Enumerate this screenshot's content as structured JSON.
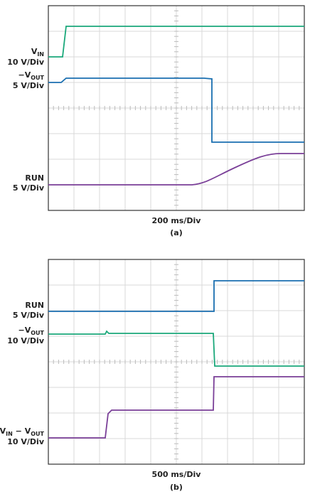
{
  "panels": [
    {
      "channels": [
        {
          "label_parts": [
            "V",
            "IN"
          ],
          "scale": "10 V/Div"
        },
        {
          "label_parts": [
            "−V",
            "OUT"
          ],
          "scale": "5 V/Div"
        },
        {
          "label_parts": [
            "RUN"
          ],
          "scale": "5 V/Div"
        }
      ],
      "timebase": "200 ms/Div",
      "caption": "(a)"
    },
    {
      "channels": [
        {
          "label_parts": [
            "RUN"
          ],
          "scale": "5 V/Div"
        },
        {
          "label_parts": [
            "−V",
            "OUT"
          ],
          "scale": "10 V/Div"
        },
        {
          "label_parts": [
            "V",
            "IN",
            " − V",
            "OUT"
          ],
          "scale": "10 V/Div"
        }
      ],
      "timebase": "500 ms/Div",
      "caption": "(b)"
    }
  ]
}
